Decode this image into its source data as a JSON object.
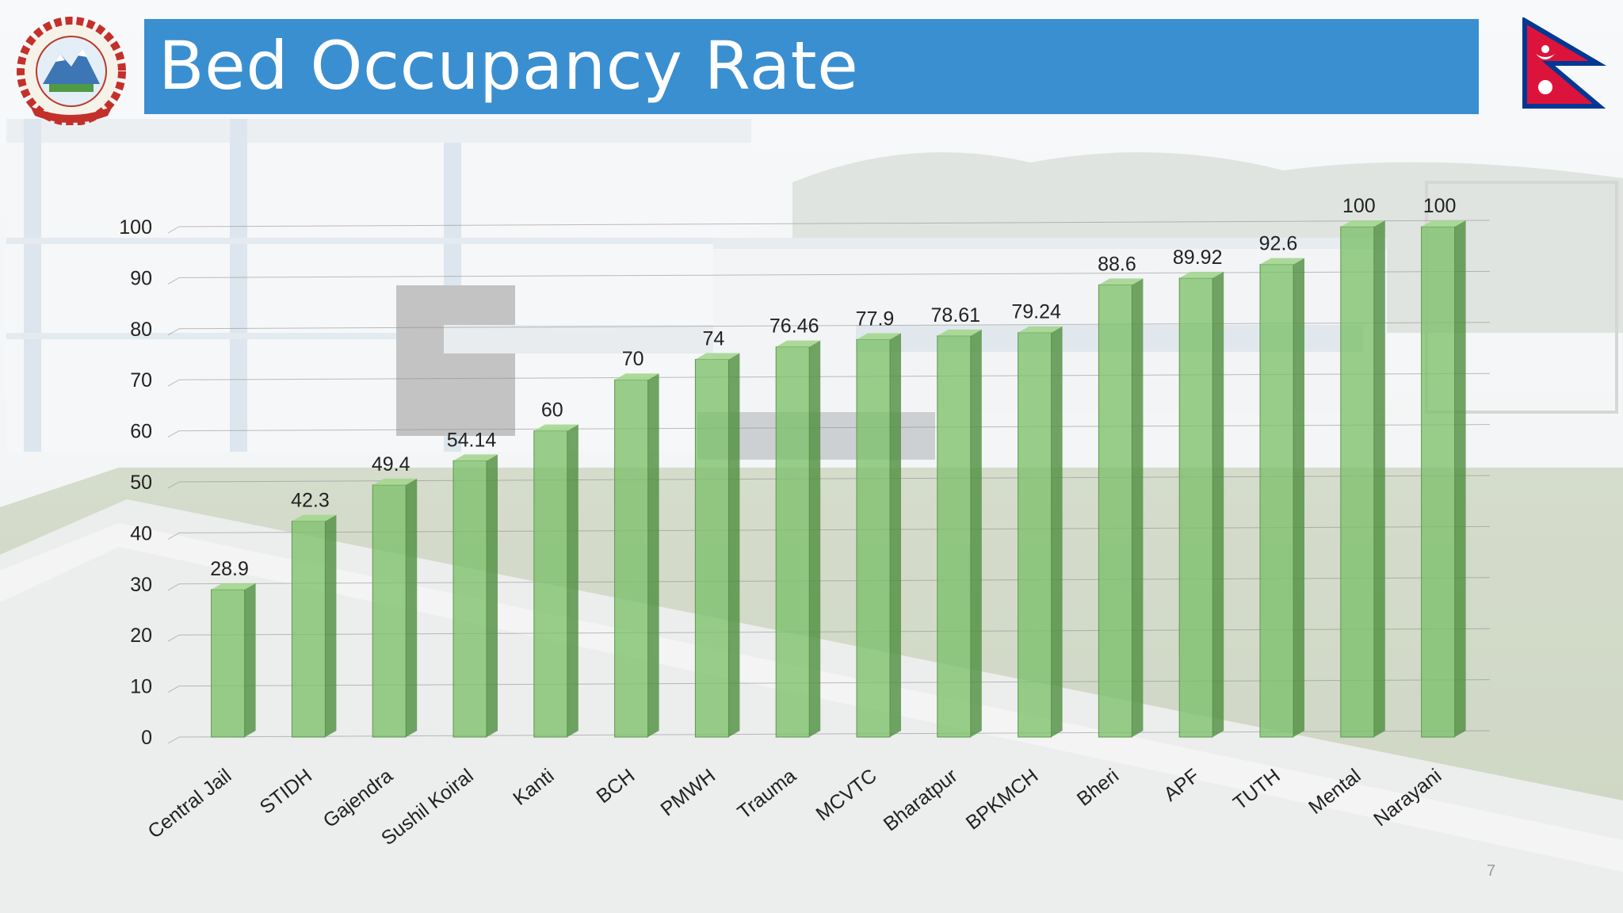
{
  "slide": {
    "title": "Bed Occupancy Rate",
    "page_number": "7"
  },
  "colors": {
    "title_bar": "#3a8fd1",
    "bar_fill": "#7cc06a",
    "bar_side": "#4f8f3f",
    "bar_top": "#a4d68f"
  },
  "icons": {
    "emblem": "nepal-emblem-icon",
    "flag": "nepal-flag-icon"
  },
  "chart_data": {
    "type": "bar",
    "categories": [
      "Central Jail",
      "STIDH",
      "Gajendra",
      "Sushil Koiral",
      "Kanti",
      "BCH",
      "PMWH",
      "Trauma",
      "MCVTC",
      "Bharatpur",
      "BPKMCH",
      "Bheri",
      "APF",
      "TUTH",
      "Mental",
      "Narayani"
    ],
    "values": [
      28.9,
      42.3,
      49.4,
      54.14,
      60,
      70,
      74,
      76.46,
      77.9,
      78.61,
      79.24,
      88.6,
      89.92,
      92.6,
      100,
      100
    ],
    "value_labels": [
      "28.9",
      "42.3",
      "49.4",
      "54.14",
      "60",
      "70",
      "74",
      "76.46",
      "77.9",
      "78.61",
      "79.24",
      "88.6",
      "89.92",
      "92.6",
      "100",
      "100"
    ],
    "yticks": [
      "0",
      "10",
      "20",
      "30",
      "40",
      "50",
      "60",
      "70",
      "80",
      "90",
      "100"
    ],
    "title": "",
    "xlabel": "",
    "ylabel": "",
    "ylim": [
      0,
      100
    ],
    "grid": true,
    "legend": "none",
    "style": "3d-column"
  }
}
